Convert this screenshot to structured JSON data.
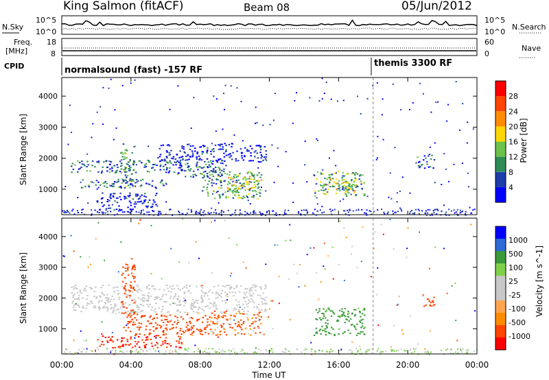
{
  "header": {
    "station": "King Salmon (fitACF)",
    "beam": "Beam 08",
    "date": "05/Jun/2012"
  },
  "summary_panels": {
    "nsky_label": "N.Sky",
    "nsearch_label": "N.Search",
    "noise_ticks": [
      "10^5",
      "10^0"
    ],
    "freq_label_1": "Freq.",
    "freq_label_2": "[MHz]",
    "freq_ticks": [
      "18",
      "8"
    ],
    "nave_label": "Nave",
    "nave_ticks": [
      "60",
      "0"
    ],
    "cpid_label": "CPID",
    "cpid_segments": [
      {
        "name": "normalsound (fast) -157 RF",
        "start_hour": 0,
        "end_hour": 18
      },
      {
        "name": "themis 3300 RF",
        "start_hour": 18,
        "end_hour": 24
      }
    ]
  },
  "colors": {
    "power": [
      "#0000ff",
      "#1e3caa",
      "#2e8b57",
      "#6cc24a",
      "#ffd700",
      "#ff8c00",
      "#ff4500",
      "#ff0000"
    ],
    "velocity": [
      "#ff0000",
      "#ff4500",
      "#ff8c00",
      "#ffa54f",
      "#c8c8c8",
      "#c8c8c8",
      "#7fd04a",
      "#3a9a3a",
      "#2e6bd6",
      "#0000ff"
    ],
    "ground_scatter": "#c8c8c8",
    "noise_line": "#000000"
  },
  "chart_data": [
    {
      "type": "heatmap",
      "panel": "power",
      "ylabel": "Slant Range [km]",
      "xlabel": "Time UT",
      "x_ticks": [
        "00:00",
        "04:00",
        "08:00",
        "12:00",
        "16:00",
        "20:00",
        "00:00"
      ],
      "y_ticks": [
        1000,
        2000,
        3000,
        4000
      ],
      "xlim_hours": [
        0,
        24
      ],
      "ylim_km": [
        180,
        4600
      ],
      "colorbar_label": "Power [dB]",
      "colorbar_ticks": [
        "4",
        "8",
        "12",
        "16",
        "20",
        "24",
        "28"
      ],
      "colorbar_range": [
        0,
        30
      ],
      "echo_regions": [
        {
          "t0": 0.5,
          "t1": 7.0,
          "r0": 1550,
          "r1": 1950,
          "level": 8
        },
        {
          "t0": 1.0,
          "t1": 6.0,
          "r0": 1050,
          "r1": 1350,
          "level": 8
        },
        {
          "t0": 2.0,
          "t1": 5.5,
          "r0": 350,
          "r1": 900,
          "level": 4
        },
        {
          "t0": 5.5,
          "t1": 11.8,
          "r0": 1900,
          "r1": 2500,
          "level": 4
        },
        {
          "t0": 6.5,
          "t1": 9.5,
          "r0": 1400,
          "r1": 2000,
          "level": 8
        },
        {
          "t0": 8.0,
          "t1": 11.5,
          "r0": 700,
          "r1": 1600,
          "level": 12
        },
        {
          "t0": 9.5,
          "t1": 11.5,
          "r0": 900,
          "r1": 1500,
          "level": 16
        },
        {
          "t0": 14.5,
          "t1": 17.5,
          "r0": 800,
          "r1": 1600,
          "level": 12
        },
        {
          "t0": 15.0,
          "t1": 17.0,
          "r0": 850,
          "r1": 1350,
          "level": 16
        },
        {
          "t0": 20.5,
          "t1": 21.5,
          "r0": 1700,
          "r1": 2200,
          "level": 8
        },
        {
          "t0": 3.3,
          "t1": 4.2,
          "r0": 1100,
          "r1": 2500,
          "level": 12
        }
      ]
    },
    {
      "type": "heatmap",
      "panel": "velocity",
      "ylabel": "Slant Range [km]",
      "xlabel": "Time UT",
      "x_ticks": [
        "00:00",
        "04:00",
        "08:00",
        "12:00",
        "16:00",
        "20:00",
        "00:00"
      ],
      "y_ticks": [
        1000,
        2000,
        3000,
        4000
      ],
      "xlim_hours": [
        0,
        24
      ],
      "ylim_km": [
        180,
        4600
      ],
      "colorbar_label": "Velocity [m s^-1]",
      "colorbar_ticks": [
        "1000",
        "500",
        "100",
        "25",
        "-25",
        "-100",
        "-500",
        "-1000"
      ],
      "colorbar_range": [
        -1000,
        1000
      ],
      "echo_regions": [
        {
          "t0": 0.5,
          "t1": 11.8,
          "r0": 1550,
          "r1": 2450,
          "vel": 0
        },
        {
          "t0": 3.5,
          "t1": 8.5,
          "r0": 800,
          "r1": 1500,
          "vel": -300
        },
        {
          "t0": 3.4,
          "t1": 4.2,
          "r0": 1500,
          "r1": 3300,
          "vel": -300
        },
        {
          "t0": 2.0,
          "t1": 7.0,
          "r0": 400,
          "r1": 800,
          "vel": -500
        },
        {
          "t0": 8.5,
          "t1": 11.5,
          "r0": 800,
          "r1": 1600,
          "vel": -150
        },
        {
          "t0": 14.5,
          "t1": 17.5,
          "r0": 800,
          "r1": 1700,
          "vel": 200
        },
        {
          "t0": 20.8,
          "t1": 21.5,
          "r0": 1700,
          "r1": 2200,
          "vel": -300
        }
      ]
    }
  ]
}
